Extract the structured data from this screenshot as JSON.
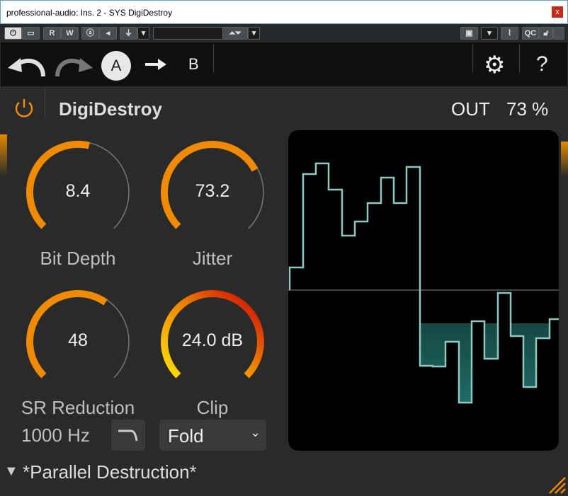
{
  "window": {
    "title": "professional-audio: Ins. 2 - SYS DigiDestroy",
    "close": "x"
  },
  "toolbar": {
    "read": "R",
    "write": "W",
    "qc": "QC",
    "preset_field": ""
  },
  "nav": {
    "a": "A",
    "b": "B",
    "help": "?"
  },
  "plugin": {
    "name": "DigiDestroy",
    "out_label": "OUT",
    "out_value": "73 %"
  },
  "knobs": [
    {
      "label": "Bit Depth",
      "value": "8.4",
      "fraction": 0.55
    },
    {
      "label": "Jitter",
      "value": "73.2",
      "fraction": 0.73
    },
    {
      "label": "SR Reduction",
      "value": "48",
      "fraction": 0.63
    },
    {
      "label": "Clip",
      "value": "24.0 dB",
      "fraction": 1.0
    }
  ],
  "sr_freq": "1000 Hz",
  "clip_mode": {
    "selected": "Fold",
    "chevron": "⌄"
  },
  "preset": {
    "name": "*Parallel Destruction*"
  },
  "colors": {
    "accent": "#f08a00",
    "wave": "#5fa8a0"
  }
}
